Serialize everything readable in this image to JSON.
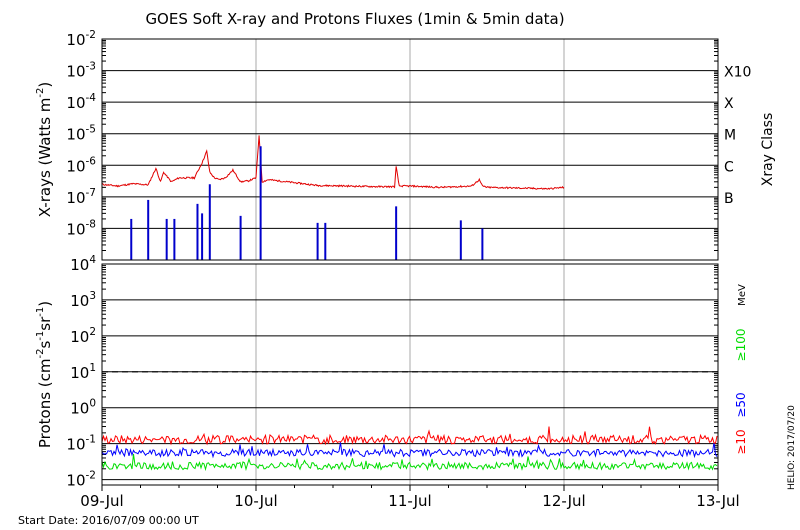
{
  "chart_data": [
    {
      "type": "line",
      "title": "GOES Soft X-ray and Protons Fluxes   (1min & 5min data)",
      "ylabel_base": "X-rays (Watts m",
      "ylabel_exp": "-2",
      "ylabel_end": ")",
      "yscale": "log",
      "ylim_exp": [
        -9,
        -2
      ],
      "yticks_exp": [
        -8,
        -7,
        -6,
        -5,
        -4,
        -3,
        -2
      ],
      "right_axis_title": "Xray Class",
      "class_labels": [
        {
          "label": "X10",
          "exp": -3
        },
        {
          "label": "X",
          "exp": -4
        },
        {
          "label": "M",
          "exp": -5
        },
        {
          "label": "C",
          "exp": -6
        },
        {
          "label": "B",
          "exp": -7
        }
      ],
      "series": [
        {
          "color": "#e00000",
          "t": [
            0,
            0.1,
            0.2,
            0.3,
            0.35,
            0.38,
            0.4,
            0.45,
            0.5,
            0.6,
            0.65,
            0.68,
            0.7,
            0.73,
            0.76,
            0.8,
            0.85,
            0.9,
            0.95,
            1.0,
            1.02,
            1.04,
            1.08,
            1.2,
            1.4,
            1.6,
            1.8,
            1.9,
            1.91,
            1.93,
            2.0,
            2.2,
            2.4,
            2.45,
            2.47,
            2.5,
            2.7,
            2.9,
            3.0
          ],
          "y": [
            2.5e-07,
            2.2e-07,
            2.6e-07,
            2.4e-07,
            8e-07,
            3e-07,
            6e-07,
            3e-07,
            4e-07,
            4e-07,
            1.2e-06,
            2.8e-06,
            6e-07,
            4e-07,
            3.5e-07,
            4e-07,
            7e-07,
            3e-07,
            3.2e-07,
            4e-07,
            9e-06,
            3e-07,
            3.5e-07,
            3e-07,
            2.3e-07,
            2.2e-07,
            2.1e-07,
            2.1e-07,
            9e-07,
            2.2e-07,
            2.2e-07,
            2e-07,
            2.2e-07,
            3.5e-07,
            2.2e-07,
            2e-07,
            1.9e-07,
            1.8e-07,
            2e-07
          ]
        },
        {
          "color": "#0000cc",
          "t": [
            0.06,
            0.19,
            0.21,
            0.27,
            0.3,
            0.32,
            0.33,
            0.35,
            0.38,
            0.42,
            0.44,
            0.47,
            0.5,
            0.55,
            0.58,
            0.62,
            0.65,
            0.7,
            0.75,
            0.8,
            0.85,
            0.9,
            0.95,
            1.0,
            1.03,
            1.05,
            1.1,
            1.2,
            1.3,
            1.4,
            1.45,
            1.5,
            1.6,
            1.7,
            1.8,
            1.9,
            1.91,
            2.0,
            2.1,
            2.2,
            2.3,
            2.33,
            2.4,
            2.47,
            2.6,
            2.8,
            3.0
          ],
          "y": [
            3e-09,
            2e-08,
            3e-09,
            3e-09,
            8e-08,
            3e-09,
            3e-09,
            3e-09,
            3e-09,
            2e-08,
            3e-09,
            2e-08,
            3e-09,
            3e-09,
            3e-09,
            6e-08,
            3e-08,
            2.5e-07,
            3e-09,
            3e-09,
            3e-09,
            2.5e-08,
            3e-09,
            3e-09,
            4e-06,
            3e-09,
            3e-09,
            3e-09,
            3e-09,
            1.5e-08,
            1.5e-08,
            3e-09,
            3e-09,
            3e-09,
            3e-09,
            3e-09,
            5e-08,
            3e-09,
            3e-09,
            3e-09,
            3e-09,
            1.8e-08,
            3e-09,
            1e-08,
            3e-09,
            3e-09,
            3e-09
          ]
        }
      ],
      "spike_markers_note_excluded": true
    },
    {
      "type": "line",
      "ylabel_base": "Protons (cm",
      "ylabel_exp1": "-2",
      "ylabel_mid1": "s",
      "ylabel_exp2": "-1",
      "ylabel_mid2": "sr",
      "ylabel_exp3": "-1",
      "ylabel_end": ")",
      "yscale": "log",
      "ylim_exp": [
        -2.15,
        4
      ],
      "yticks_exp": [
        -2,
        -1,
        0,
        1,
        2,
        3,
        4
      ],
      "threshold_exp": 1,
      "right_units": "MeV",
      "series": [
        {
          "name": "≥10",
          "color": "#ff0000",
          "level": 0.13,
          "spread": 0.12
        },
        {
          "name": "≥50",
          "color": "#0000ff",
          "level": 0.055,
          "spread": 0.1
        },
        {
          "name": "≥100",
          "color": "#00dd00",
          "level": 0.024,
          "spread": 0.1
        }
      ]
    }
  ],
  "x_axis": {
    "days": [
      "09-Jul",
      "10-Jul",
      "11-Jul",
      "12-Jul",
      "13-Jul"
    ]
  },
  "start_date": "Start Date: 2016/07/09 00:00 UT",
  "credit": "HELIO: 2017/07/20"
}
